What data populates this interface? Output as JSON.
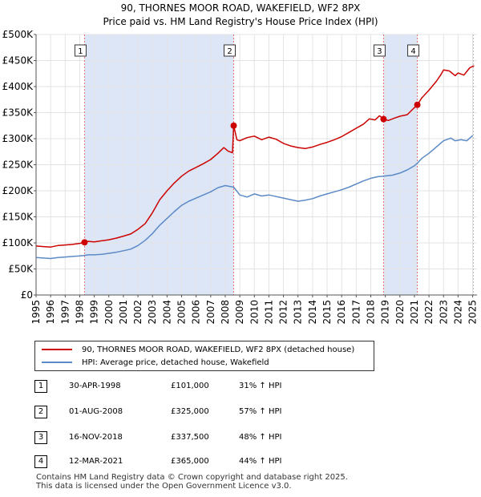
{
  "chart_data": {
    "type": "line",
    "title": "90, THORNES MOOR ROAD, WAKEFIELD, WF2 8PX",
    "subtitle": "Price paid vs. HM Land Registry's House Price Index (HPI)",
    "xlim": [
      1995,
      2025.3
    ],
    "ylim": [
      0,
      500000
    ],
    "y_ticks": [
      {
        "value": 0,
        "label": "£0"
      },
      {
        "value": 50000,
        "label": "£50K"
      },
      {
        "value": 100000,
        "label": "£100K"
      },
      {
        "value": 150000,
        "label": "£150K"
      },
      {
        "value": 200000,
        "label": "£200K"
      },
      {
        "value": 250000,
        "label": "£250K"
      },
      {
        "value": 300000,
        "label": "£300K"
      },
      {
        "value": 350000,
        "label": "£350K"
      },
      {
        "value": 400000,
        "label": "£400K"
      },
      {
        "value": 450000,
        "label": "£450K"
      },
      {
        "value": 500000,
        "label": "£500K"
      }
    ],
    "x_ticks": [
      "1995",
      "1996",
      "1997",
      "1998",
      "1999",
      "2000",
      "2001",
      "2002",
      "2003",
      "2004",
      "2005",
      "2006",
      "2007",
      "2008",
      "2009",
      "2010",
      "2011",
      "2012",
      "2013",
      "2014",
      "2015",
      "2016",
      "2017",
      "2018",
      "2019",
      "2020",
      "2021",
      "2022",
      "2023",
      "2024",
      "2025"
    ],
    "shaded_periods": [
      [
        1998.33,
        2008.58
      ],
      [
        2018.88,
        2021.2
      ]
    ],
    "series": [
      {
        "name": "90, THORNES MOOR ROAD, WAKEFIELD, WF2 8PX (detached house)",
        "color": "#cc0000",
        "points": [
          [
            1995.0,
            94000
          ],
          [
            1995.5,
            93000
          ],
          [
            1996.0,
            92000
          ],
          [
            1996.5,
            95000
          ],
          [
            1997.0,
            96000
          ],
          [
            1997.5,
            97000
          ],
          [
            1998.0,
            99000
          ],
          [
            1998.33,
            101000
          ],
          [
            1998.6,
            103000
          ],
          [
            1999.0,
            102000
          ],
          [
            1999.5,
            104000
          ],
          [
            2000.0,
            106000
          ],
          [
            2000.5,
            109000
          ],
          [
            2001.0,
            113000
          ],
          [
            2001.5,
            117000
          ],
          [
            2002.0,
            126000
          ],
          [
            2002.5,
            137000
          ],
          [
            2003.0,
            158000
          ],
          [
            2003.5,
            183000
          ],
          [
            2004.0,
            200000
          ],
          [
            2004.5,
            215000
          ],
          [
            2005.0,
            228000
          ],
          [
            2005.5,
            238000
          ],
          [
            2006.0,
            245000
          ],
          [
            2006.5,
            252000
          ],
          [
            2007.0,
            260000
          ],
          [
            2007.5,
            272000
          ],
          [
            2007.9,
            283000
          ],
          [
            2008.2,
            276000
          ],
          [
            2008.5,
            273000
          ],
          [
            2008.58,
            325000
          ],
          [
            2008.8,
            298000
          ],
          [
            2009.0,
            296000
          ],
          [
            2009.5,
            302000
          ],
          [
            2010.0,
            305000
          ],
          [
            2010.5,
            298000
          ],
          [
            2011.0,
            303000
          ],
          [
            2011.5,
            299000
          ],
          [
            2012.0,
            291000
          ],
          [
            2012.5,
            286000
          ],
          [
            2013.0,
            283000
          ],
          [
            2013.5,
            281000
          ],
          [
            2014.0,
            284000
          ],
          [
            2014.5,
            289000
          ],
          [
            2015.0,
            293000
          ],
          [
            2015.5,
            298000
          ],
          [
            2016.0,
            304000
          ],
          [
            2016.5,
            312000
          ],
          [
            2017.0,
            320000
          ],
          [
            2017.5,
            328000
          ],
          [
            2017.9,
            338000
          ],
          [
            2018.3,
            336000
          ],
          [
            2018.6,
            344000
          ],
          [
            2018.88,
            337500
          ],
          [
            2019.2,
            335000
          ],
          [
            2019.6,
            339000
          ],
          [
            2020.0,
            343000
          ],
          [
            2020.5,
            346000
          ],
          [
            2020.9,
            357000
          ],
          [
            2021.2,
            365000
          ],
          [
            2021.5,
            378000
          ],
          [
            2022.0,
            393000
          ],
          [
            2022.5,
            410000
          ],
          [
            2022.8,
            422000
          ],
          [
            2023.0,
            432000
          ],
          [
            2023.4,
            430000
          ],
          [
            2023.8,
            421000
          ],
          [
            2024.0,
            426000
          ],
          [
            2024.4,
            422000
          ],
          [
            2024.8,
            436000
          ],
          [
            2025.1,
            440000
          ]
        ]
      },
      {
        "name": "HPI: Average price, detached house, Wakefield",
        "color": "#5b8ac6",
        "points": [
          [
            1995.0,
            72000
          ],
          [
            1995.5,
            71000
          ],
          [
            1996.0,
            70000
          ],
          [
            1996.5,
            72000
          ],
          [
            1997.0,
            73000
          ],
          [
            1997.5,
            74000
          ],
          [
            1998.0,
            75000
          ],
          [
            1998.33,
            76000
          ],
          [
            1998.6,
            77000
          ],
          [
            1999.0,
            77000
          ],
          [
            1999.5,
            78000
          ],
          [
            2000.0,
            80000
          ],
          [
            2000.5,
            82000
          ],
          [
            2001.0,
            85000
          ],
          [
            2001.5,
            88000
          ],
          [
            2002.0,
            95000
          ],
          [
            2002.5,
            105000
          ],
          [
            2003.0,
            118000
          ],
          [
            2003.5,
            134000
          ],
          [
            2004.0,
            147000
          ],
          [
            2004.5,
            160000
          ],
          [
            2005.0,
            172000
          ],
          [
            2005.5,
            180000
          ],
          [
            2006.0,
            186000
          ],
          [
            2006.5,
            192000
          ],
          [
            2007.0,
            198000
          ],
          [
            2007.5,
            206000
          ],
          [
            2008.0,
            210000
          ],
          [
            2008.58,
            207000
          ],
          [
            2009.0,
            192000
          ],
          [
            2009.5,
            188000
          ],
          [
            2010.0,
            194000
          ],
          [
            2010.5,
            190000
          ],
          [
            2011.0,
            192000
          ],
          [
            2011.5,
            189000
          ],
          [
            2012.0,
            186000
          ],
          [
            2012.5,
            183000
          ],
          [
            2013.0,
            180000
          ],
          [
            2013.5,
            182000
          ],
          [
            2014.0,
            185000
          ],
          [
            2014.5,
            190000
          ],
          [
            2015.0,
            194000
          ],
          [
            2015.5,
            198000
          ],
          [
            2016.0,
            202000
          ],
          [
            2016.5,
            207000
          ],
          [
            2017.0,
            213000
          ],
          [
            2017.5,
            219000
          ],
          [
            2018.0,
            224000
          ],
          [
            2018.5,
            227000
          ],
          [
            2018.88,
            228000
          ],
          [
            2019.5,
            230000
          ],
          [
            2020.0,
            234000
          ],
          [
            2020.5,
            240000
          ],
          [
            2021.0,
            248000
          ],
          [
            2021.2,
            253000
          ],
          [
            2021.5,
            262000
          ],
          [
            2022.0,
            272000
          ],
          [
            2022.5,
            284000
          ],
          [
            2023.0,
            296000
          ],
          [
            2023.5,
            301000
          ],
          [
            2023.8,
            296000
          ],
          [
            2024.2,
            298000
          ],
          [
            2024.6,
            296000
          ],
          [
            2025.0,
            306000
          ]
        ]
      }
    ],
    "transactions": [
      {
        "num": "1",
        "date": "30-APR-1998",
        "price": "£101,000",
        "hpi": "31% ↑ HPI",
        "x": 1998.33,
        "y": 101000
      },
      {
        "num": "2",
        "date": "01-AUG-2008",
        "price": "£325,000",
        "hpi": "57% ↑ HPI",
        "x": 2008.58,
        "y": 325000
      },
      {
        "num": "3",
        "date": "16-NOV-2018",
        "price": "£337,500",
        "hpi": "48% ↑ HPI",
        "x": 2018.88,
        "y": 337500
      },
      {
        "num": "4",
        "date": "12-MAR-2021",
        "price": "£365,000",
        "hpi": "44% ↑ HPI",
        "x": 2021.2,
        "y": 365000
      }
    ],
    "marker_color": "#cc0000",
    "shade_color": "#dde6f7",
    "vline_color": "#e07070",
    "grid": true
  },
  "legend": {
    "red_label": "90, THORNES MOOR ROAD, WAKEFIELD, WF2 8PX (detached house)",
    "blue_label": "HPI: Average price, detached house, Wakefield"
  },
  "footer": {
    "line1": "Contains HM Land Registry data © Crown copyright and database right 2025.",
    "line2": "This data is licensed under the Open Government Licence v3.0."
  }
}
